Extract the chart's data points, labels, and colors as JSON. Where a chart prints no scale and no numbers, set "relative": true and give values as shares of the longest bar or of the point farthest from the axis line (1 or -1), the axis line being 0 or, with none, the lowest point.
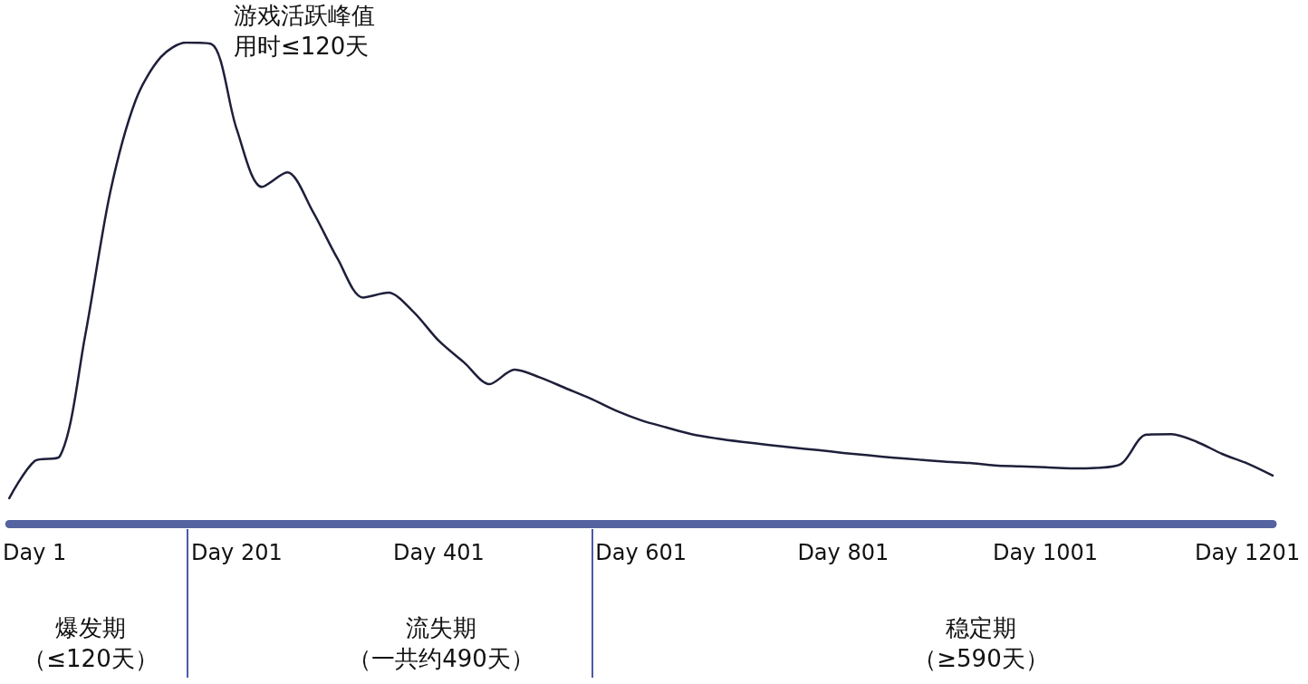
{
  "chart_data": {
    "type": "line",
    "relative": true,
    "marker": "none",
    "line_style": "solid",
    "color": "#1e1f3a",
    "categories": [
      null,
      "Day 1",
      null,
      null,
      null,
      null,
      null,
      null,
      null,
      "Day 201",
      null,
      null,
      null,
      null,
      null,
      null,
      null,
      "Day 401",
      null,
      null,
      null,
      null,
      null,
      null,
      null,
      "Day 601",
      null,
      null,
      null,
      null,
      null,
      null,
      null,
      "Day 801",
      null,
      null,
      null,
      null,
      null,
      null,
      null,
      "Day 1001",
      null,
      null,
      null,
      null,
      null,
      null,
      null,
      "Day 1201",
      null
    ],
    "values": [
      0.053,
      0.13,
      0.14,
      0.39,
      0.69,
      0.88,
      0.97,
      1,
      0.997,
      0.82,
      0.7,
      0.73,
      0.65,
      0.55,
      0.47,
      0.48,
      0.44,
      0.38,
      0.335,
      0.29,
      0.32,
      0.304,
      0.282,
      0.26,
      0.235,
      0.215,
      0.2,
      0.186,
      0.177,
      0.17,
      0.164,
      0.158,
      0.153,
      0.147,
      0.142,
      0.137,
      0.133,
      0.129,
      0.126,
      0.121,
      0.119,
      0.117,
      0.115,
      0.116,
      0.124,
      0.185,
      0.186,
      0.17,
      0.145,
      0.125,
      0.1
    ],
    "annotations": [
      "游戏活跃峰值",
      "用时≤120天",
      "爆发期",
      "（≤120天）",
      "流失期",
      "（一共约490天）",
      "稳定期",
      "（≥590天）"
    ]
  }
}
